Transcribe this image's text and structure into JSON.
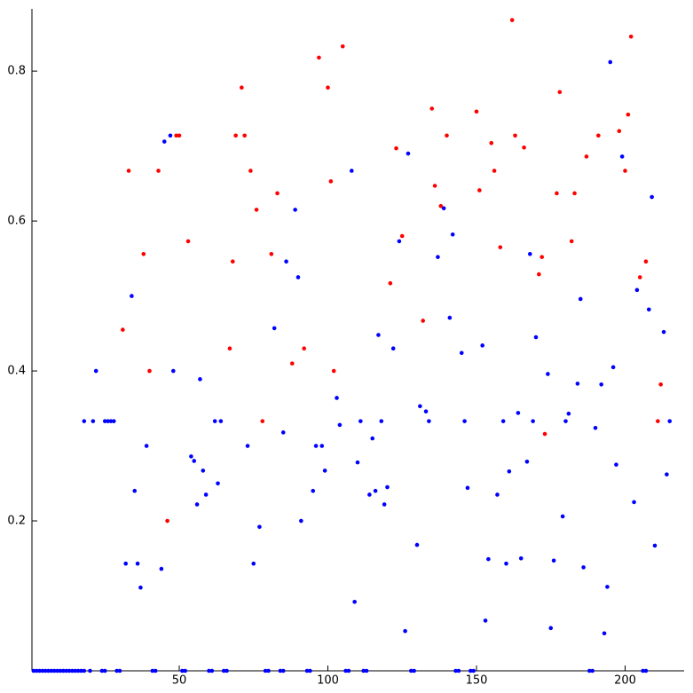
{
  "chart_data": {
    "type": "scatter",
    "xlim": [
      0,
      220
    ],
    "ylim": [
      0,
      0.883
    ],
    "xticks": [
      50,
      100,
      150,
      200
    ],
    "yticks": [
      0.2,
      0.4,
      0.6,
      0.8
    ],
    "series": [
      {
        "color": "#0000ff",
        "x": [
          1,
          2,
          3,
          4,
          5,
          6,
          7,
          8,
          9,
          10,
          11,
          12,
          13,
          14,
          15,
          16,
          17,
          18,
          20,
          24,
          25,
          29,
          30,
          41,
          42,
          51,
          52,
          60,
          61,
          65,
          66,
          79,
          80,
          84,
          85,
          93,
          94,
          106,
          107,
          112,
          113,
          128,
          129,
          143,
          144,
          148,
          149,
          188,
          189,
          206,
          207,
          18,
          21,
          22,
          25,
          26,
          27,
          28,
          32,
          34,
          35,
          36,
          37,
          39,
          44,
          45,
          47,
          48,
          54,
          55,
          56,
          57,
          58,
          59,
          62,
          63,
          64,
          73,
          75,
          77,
          82,
          85,
          86,
          89,
          90,
          91,
          95,
          96,
          98,
          99,
          103,
          104,
          108,
          109,
          110,
          111,
          114,
          115,
          116,
          117,
          118,
          119,
          120,
          122,
          124,
          126,
          127,
          130,
          131,
          133,
          134,
          137,
          139,
          141,
          142,
          145,
          146,
          147,
          152,
          153,
          154,
          157,
          159,
          160,
          161,
          164,
          165,
          167,
          168,
          169,
          170,
          174,
          175,
          176,
          179,
          180,
          181,
          184,
          185,
          186,
          190,
          192,
          193,
          194,
          195,
          196,
          197,
          199,
          203,
          204,
          208,
          209,
          210,
          213,
          214,
          215
        ],
        "values": [
          0,
          0,
          0,
          0,
          0,
          0,
          0,
          0,
          0,
          0,
          0,
          0,
          0,
          0,
          0,
          0,
          0,
          0,
          0,
          0,
          0,
          0,
          0,
          0,
          0,
          0,
          0,
          0,
          0,
          0,
          0,
          0,
          0,
          0,
          0,
          0,
          0,
          0,
          0,
          0,
          0,
          0,
          0,
          0,
          0,
          0,
          0,
          0,
          0,
          0,
          0,
          0.333,
          0.333,
          0.4,
          0.333,
          0.333,
          0.333,
          0.333,
          0.143,
          0.5,
          0.24,
          0.143,
          0.111,
          0.3,
          0.136,
          0.706,
          0.714,
          0.4,
          0.286,
          0.28,
          0.222,
          0.389,
          0.267,
          0.235,
          0.333,
          0.25,
          0.333,
          0.3,
          0.143,
          0.192,
          0.457,
          0.318,
          0.546,
          0.615,
          0.525,
          0.2,
          0.24,
          0.3,
          0.3,
          0.267,
          0.364,
          0.328,
          0.667,
          0.092,
          0.278,
          0.333,
          0.235,
          0.31,
          0.24,
          0.448,
          0.333,
          0.222,
          0.245,
          0.43,
          0.573,
          0.053,
          0.69,
          0.168,
          0.353,
          0.346,
          0.333,
          0.552,
          0.617,
          0.471,
          0.582,
          0.424,
          0.333,
          0.244,
          0.434,
          0.067,
          0.149,
          0.235,
          0.333,
          0.143,
          0.266,
          0.344,
          0.15,
          0.279,
          0.556,
          0.333,
          0.445,
          0.396,
          0.057,
          0.147,
          0.206,
          0.333,
          0.343,
          0.383,
          0.496,
          0.138,
          0.324,
          0.382,
          0.05,
          0.112,
          0.812,
          0.405,
          0.275,
          0.686,
          0.225,
          0.508,
          0.482,
          0.632,
          0.167,
          0.452,
          0.262,
          0.333
        ]
      },
      {
        "color": "#ff0000",
        "x": [
          31,
          33,
          38,
          40,
          43,
          46,
          49,
          50,
          53,
          67,
          68,
          69,
          71,
          72,
          74,
          76,
          78,
          81,
          83,
          88,
          92,
          97,
          100,
          101,
          102,
          105,
          121,
          123,
          125,
          132,
          135,
          136,
          138,
          140,
          150,
          151,
          155,
          156,
          158,
          162,
          163,
          166,
          171,
          172,
          173,
          177,
          178,
          182,
          183,
          187,
          191,
          198,
          200,
          201,
          202,
          205,
          207,
          211,
          212
        ],
        "values": [
          0.455,
          0.667,
          0.556,
          0.4,
          0.667,
          0.2,
          0.714,
          0.714,
          0.573,
          0.43,
          0.546,
          0.714,
          0.778,
          0.714,
          0.667,
          0.615,
          0.333,
          0.556,
          0.637,
          0.41,
          0.43,
          0.818,
          0.778,
          0.653,
          0.4,
          0.833,
          0.517,
          0.697,
          0.58,
          0.467,
          0.75,
          0.647,
          0.62,
          0.714,
          0.746,
          0.641,
          0.704,
          0.667,
          0.565,
          0.868,
          0.714,
          0.698,
          0.529,
          0.552,
          0.316,
          0.637,
          0.772,
          0.573,
          0.637,
          0.686,
          0.714,
          0.72,
          0.667,
          0.742,
          0.846,
          0.525,
          0.546,
          0.333,
          0.382
        ]
      }
    ]
  }
}
